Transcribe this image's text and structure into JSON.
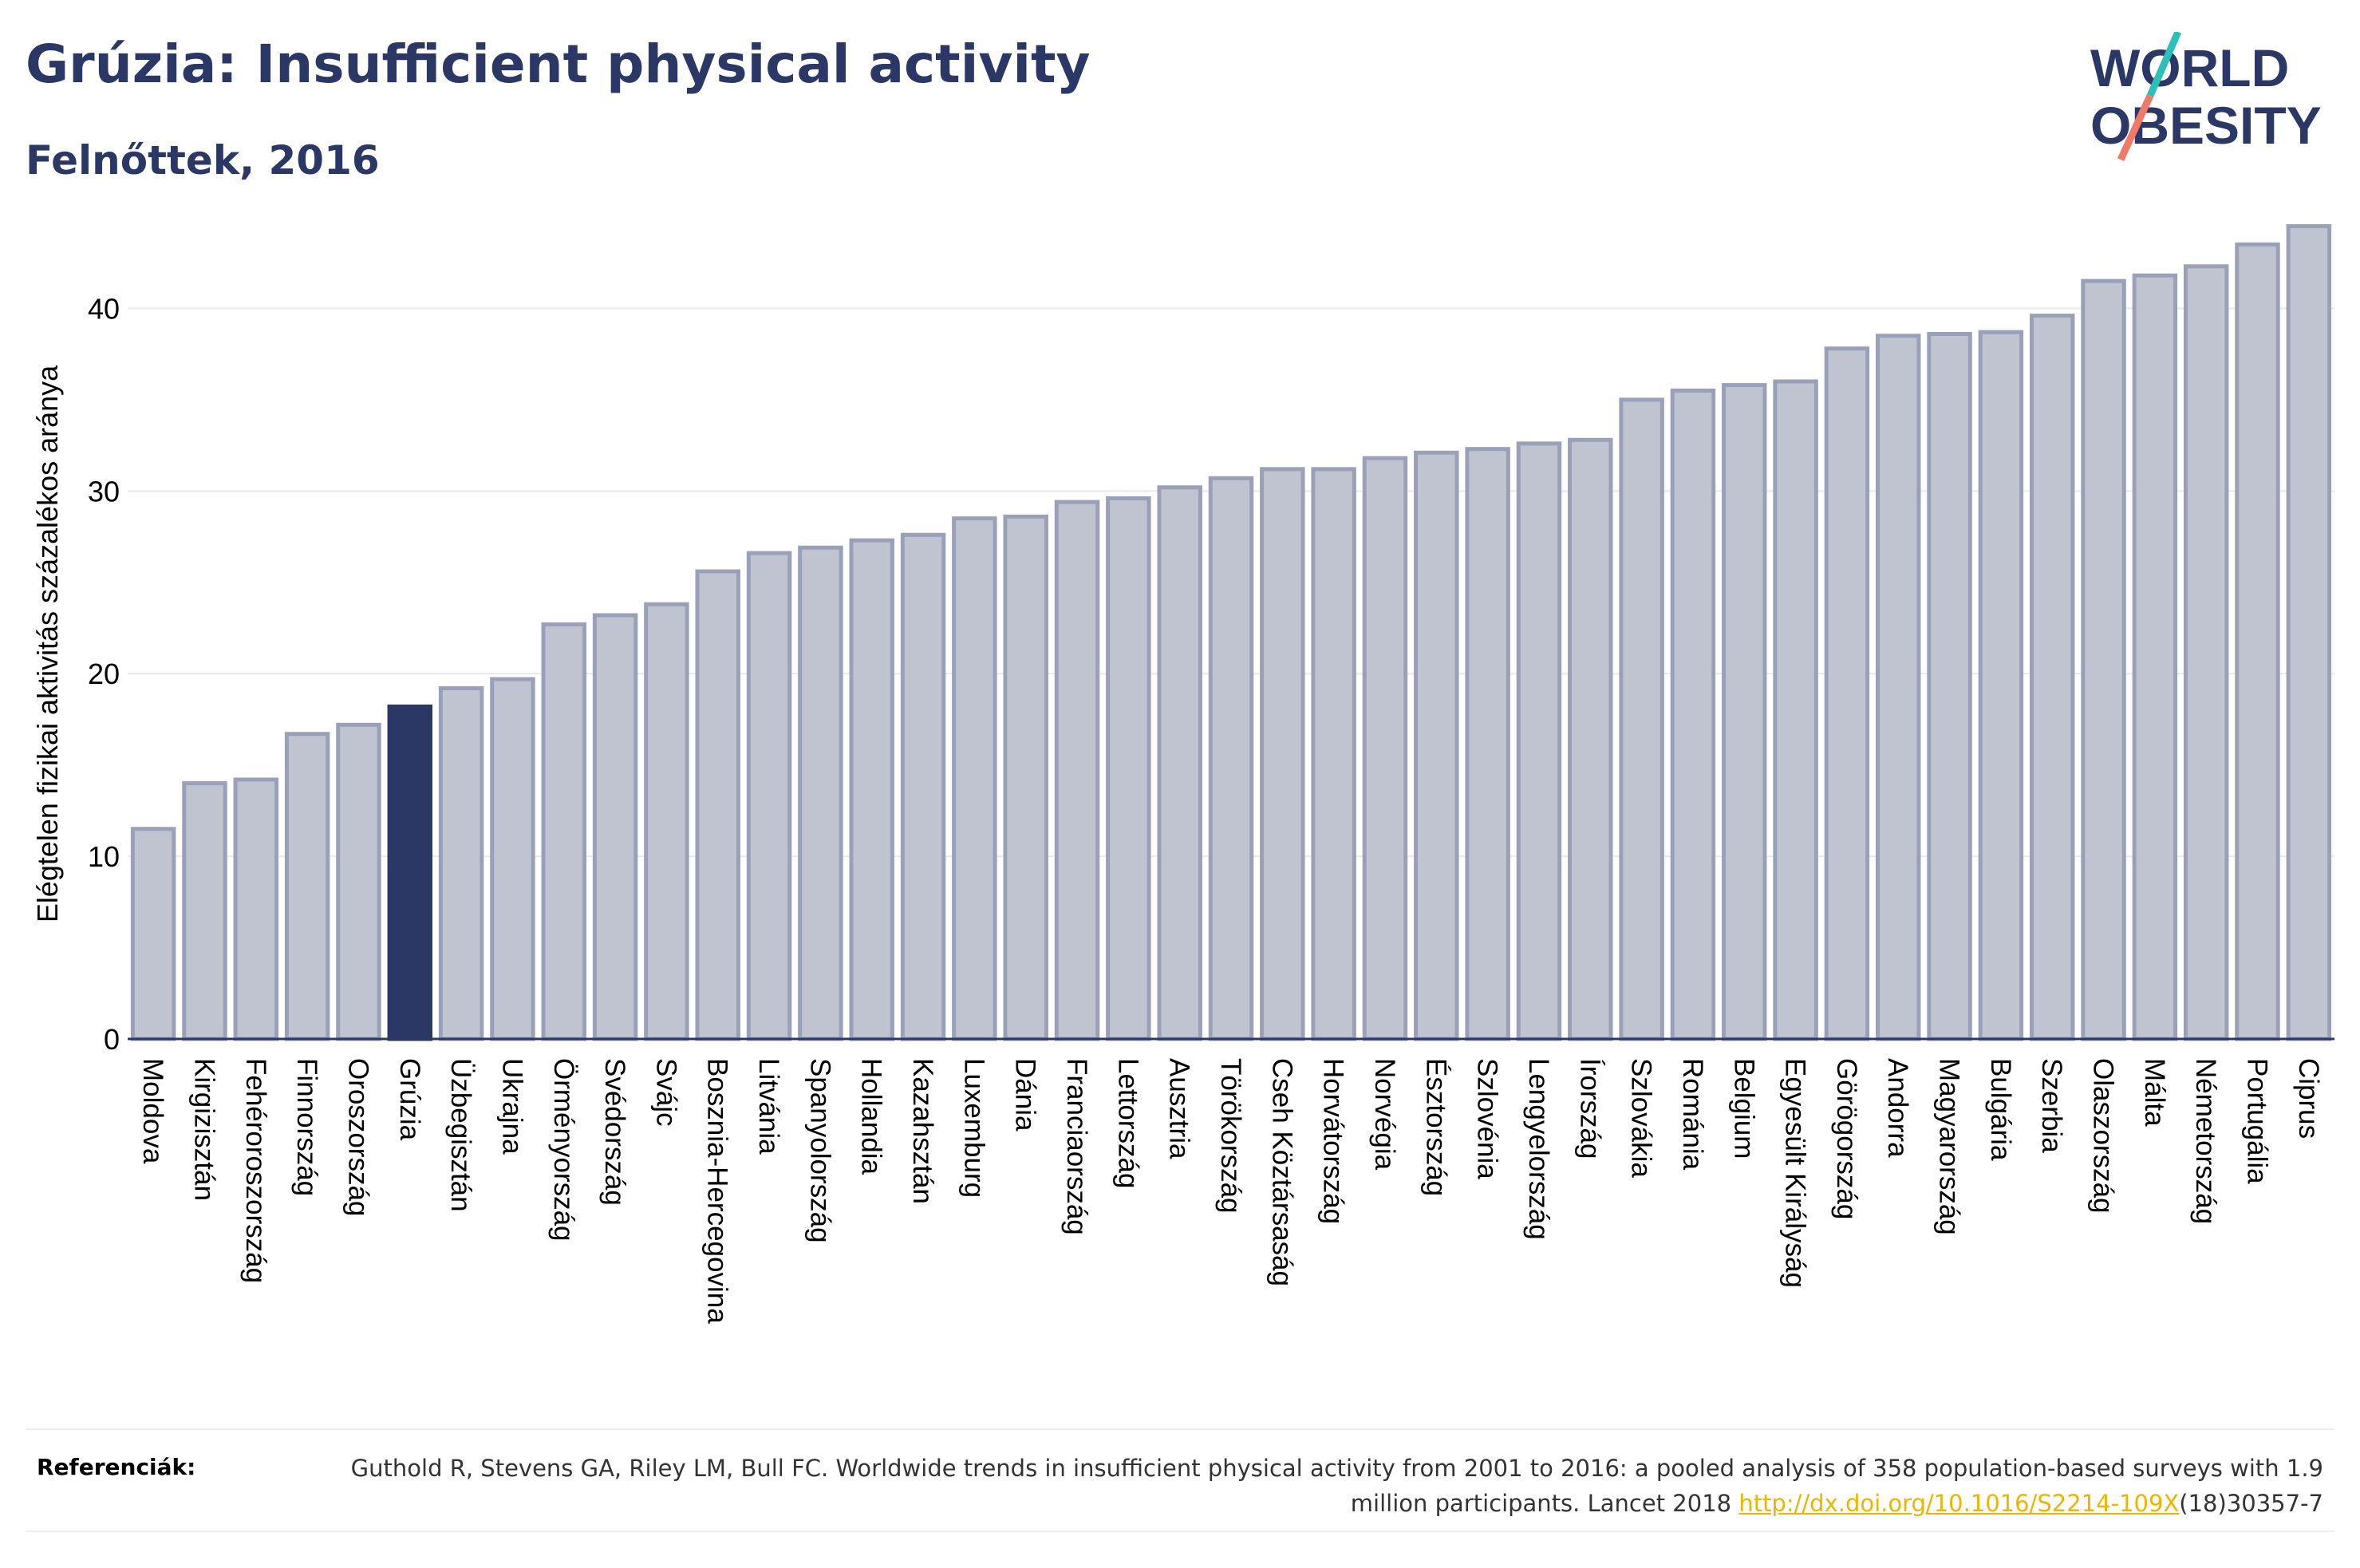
{
  "header": {
    "title": "Grúzia: Insufficient physical activity",
    "subtitle": "Felnőttek, 2016"
  },
  "logo": {
    "line1": "WORLD",
    "line2": "OBESITY"
  },
  "chart_data": {
    "type": "bar",
    "ylabel": "Elégtelen fizikai aktivitás százalékos aránya",
    "ylim": [
      0,
      45
    ],
    "yticks": [
      0,
      10,
      20,
      30,
      40
    ],
    "grid": true,
    "highlight": "Grúzia",
    "categories": [
      "Moldova",
      "Kirgizisztán",
      "Fehéroroszország",
      "Finnország",
      "Oroszország",
      "Grúzia",
      "Üzbegisztán",
      "Ukrajna",
      "Örményország",
      "Svédország",
      "Svájc",
      "Bosznia-Hercegovina",
      "Litvánia",
      "Spanyolország",
      "Hollandia",
      "Kazahsztán",
      "Luxemburg",
      "Dánia",
      "Franciaország",
      "Lettország",
      "Ausztria",
      "Törökország",
      "Cseh Köztársaság",
      "Horvátország",
      "Norvégia",
      "Észtország",
      "Szlovénia",
      "Lengyelország",
      "Írország",
      "Szlovákia",
      "Románia",
      "Belgium",
      "Egyesült Királyság",
      "Görögország",
      "Andorra",
      "Magyarország",
      "Bulgária",
      "Szerbia",
      "Olaszország",
      "Málta",
      "Németország",
      "Portugália",
      "Ciprus"
    ],
    "values": [
      11.5,
      14.0,
      14.2,
      16.7,
      17.2,
      18.2,
      19.2,
      19.7,
      22.7,
      23.2,
      23.8,
      25.6,
      26.6,
      26.9,
      27.3,
      27.6,
      28.5,
      28.6,
      29.4,
      29.6,
      30.2,
      30.7,
      31.2,
      31.2,
      31.8,
      32.1,
      32.3,
      32.6,
      32.8,
      35.0,
      35.5,
      35.8,
      36.0,
      37.8,
      38.5,
      38.6,
      38.7,
      39.6,
      41.5,
      41.8,
      42.3,
      43.5,
      44.5
    ],
    "colors": {
      "bar": "#c0c4d1",
      "bar_edge": "#9aa0b8",
      "highlight": "#2b3765",
      "grid": "#e9e9e9",
      "axis": "#2b3765"
    }
  },
  "references": {
    "label": "Referenciák:",
    "text_before": "Guthold R, Stevens GA, Riley LM, Bull FC. Worldwide trends in insufficient physical activity from 2001 to 2016: a pooled analysis of 358 population-based surveys with 1.9 million participants. Lancet 2018 ",
    "link": "http://dx.doi.org/10.1016/S2214-109X",
    "text_after": "(18)30357-7"
  }
}
